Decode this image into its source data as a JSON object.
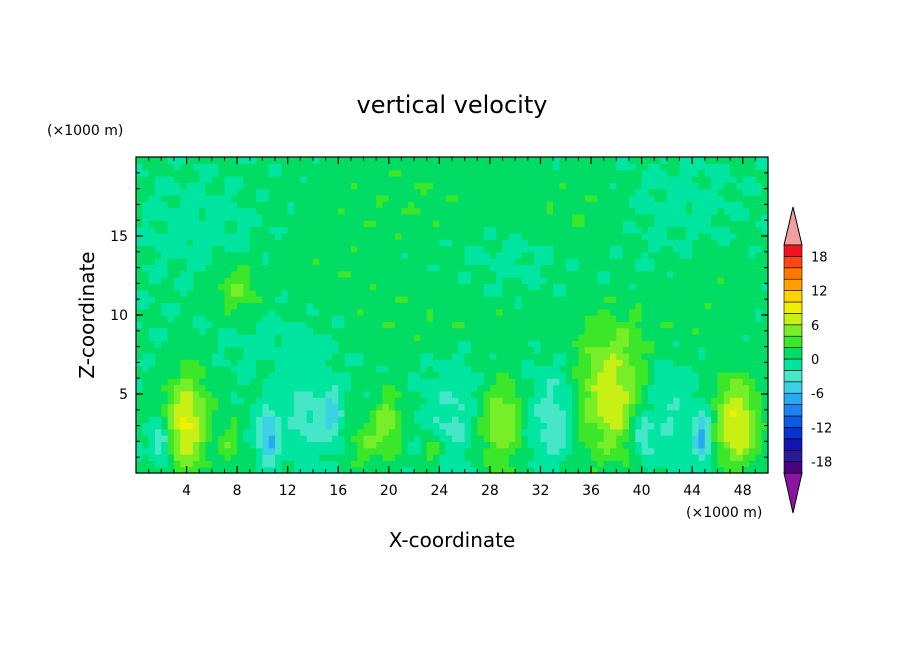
{
  "chart_data": {
    "type": "heatmap",
    "title": "vertical velocity",
    "xlabel": "X-coordinate",
    "ylabel": "Z-coordinate",
    "x_unit": "(×1000 m)",
    "y_unit": "(×1000 m)",
    "xlim": [
      0,
      50
    ],
    "ylim": [
      0,
      20
    ],
    "x_ticks": [
      4,
      8,
      12,
      16,
      20,
      24,
      28,
      32,
      36,
      40,
      44,
      48
    ],
    "y_ticks": [
      5,
      10,
      15
    ],
    "grid": false,
    "colorbar": {
      "levels": [
        -20,
        -18,
        -16,
        -14,
        -12,
        -10,
        -8,
        -6,
        -4,
        -2,
        0,
        2,
        4,
        6,
        8,
        10,
        12,
        14,
        16,
        18,
        20
      ],
      "tick_labels": [
        18,
        12,
        6,
        0,
        -6,
        -12,
        -18
      ],
      "colors": [
        "#4b0082",
        "#2a1a9a",
        "#1414b4",
        "#0a32d2",
        "#0a5ae6",
        "#1e82f0",
        "#28aaf0",
        "#3cd2e6",
        "#46e6c8",
        "#00e6a0",
        "#00dc64",
        "#3ce628",
        "#78ee28",
        "#c8f014",
        "#f0f000",
        "#ffd200",
        "#ffa000",
        "#ff7800",
        "#ff4614",
        "#f0141e"
      ],
      "extend_min_color": "#8c14a0",
      "extend_max_color": "#f0a0a0"
    },
    "features": [
      {
        "x": 4,
        "z": 3.2,
        "sx": 1.2,
        "sz": 2.2,
        "amp": 8
      },
      {
        "x": 7.5,
        "z": 2.0,
        "sx": 0.6,
        "sz": 1.2,
        "amp": 3
      },
      {
        "x": 8,
        "z": 11.5,
        "sx": 1.2,
        "sz": 1.2,
        "amp": 3.5
      },
      {
        "x": 2,
        "z": 2.0,
        "sx": 0.5,
        "sz": 0.9,
        "amp": -6
      },
      {
        "x": 10.5,
        "z": 2.3,
        "sx": 0.6,
        "sz": 1.2,
        "amp": -7
      },
      {
        "x": 13.5,
        "z": 3.5,
        "sx": 1.2,
        "sz": 2.0,
        "amp": -3
      },
      {
        "x": 15.5,
        "z": 3.8,
        "sx": 0.6,
        "sz": 1.2,
        "amp": -5
      },
      {
        "x": 18.5,
        "z": 2.0,
        "sx": 1.3,
        "sz": 1.2,
        "amp": 3
      },
      {
        "x": 20,
        "z": 3.6,
        "sx": 0.7,
        "sz": 1.5,
        "amp": 4
      },
      {
        "x": 23.5,
        "z": 1.5,
        "sx": 0.7,
        "sz": 0.8,
        "amp": 3.5
      },
      {
        "x": 25,
        "z": 3.0,
        "sx": 1.5,
        "sz": 2.0,
        "amp": -3
      },
      {
        "x": 29,
        "z": 3.5,
        "sx": 1.5,
        "sz": 2.5,
        "amp": 5.5
      },
      {
        "x": 31.5,
        "z": 3.0,
        "sx": 1.2,
        "sz": 2.0,
        "amp": -2.5
      },
      {
        "x": 33.5,
        "z": 3.5,
        "sx": 1.0,
        "sz": 2.0,
        "amp": -3
      },
      {
        "x": 37.5,
        "z": 5.0,
        "sx": 1.8,
        "sz": 2.8,
        "amp": 7
      },
      {
        "x": 40,
        "z": 2.5,
        "sx": 0.6,
        "sz": 1.0,
        "amp": -5
      },
      {
        "x": 42,
        "z": 3.5,
        "sx": 1.2,
        "sz": 2.5,
        "amp": -2.5
      },
      {
        "x": 44.8,
        "z": 2.3,
        "sx": 0.5,
        "sz": 1.3,
        "amp": -7
      },
      {
        "x": 47.5,
        "z": 3.2,
        "sx": 1.2,
        "sz": 2.0,
        "amp": 8
      },
      {
        "x": 24,
        "z": 9.5,
        "sx": 6.0,
        "sz": 1.5,
        "amp": 1.2
      },
      {
        "x": 40,
        "z": 9.0,
        "sx": 5.0,
        "sz": 1.2,
        "amp": 1.0
      },
      {
        "x": 12,
        "z": 8.5,
        "sx": 4.0,
        "sz": 1.5,
        "amp": -1.2
      },
      {
        "x": 22,
        "z": 17.5,
        "sx": 6.0,
        "sz": 2.0,
        "amp": 1.3
      },
      {
        "x": 35,
        "z": 16.5,
        "sx": 3.0,
        "sz": 2.0,
        "amp": 1.2
      },
      {
        "x": 16,
        "z": 12.5,
        "sx": 4.0,
        "sz": 2.0,
        "amp": 1.0
      },
      {
        "x": 45,
        "z": 12.5,
        "sx": 3.0,
        "sz": 2.0,
        "amp": 1.2
      },
      {
        "x": 5,
        "z": 15.5,
        "sx": 3.0,
        "sz": 2.0,
        "amp": -1.2
      },
      {
        "x": 43,
        "z": 16.0,
        "sx": 3.0,
        "sz": 2.5,
        "amp": -1.2
      },
      {
        "x": 30,
        "z": 13.5,
        "sx": 3.0,
        "sz": 1.5,
        "amp": -1.0
      },
      {
        "x": 28,
        "z": 6.5,
        "sx": 3.0,
        "sz": 1.5,
        "amp": -1.5
      }
    ]
  }
}
